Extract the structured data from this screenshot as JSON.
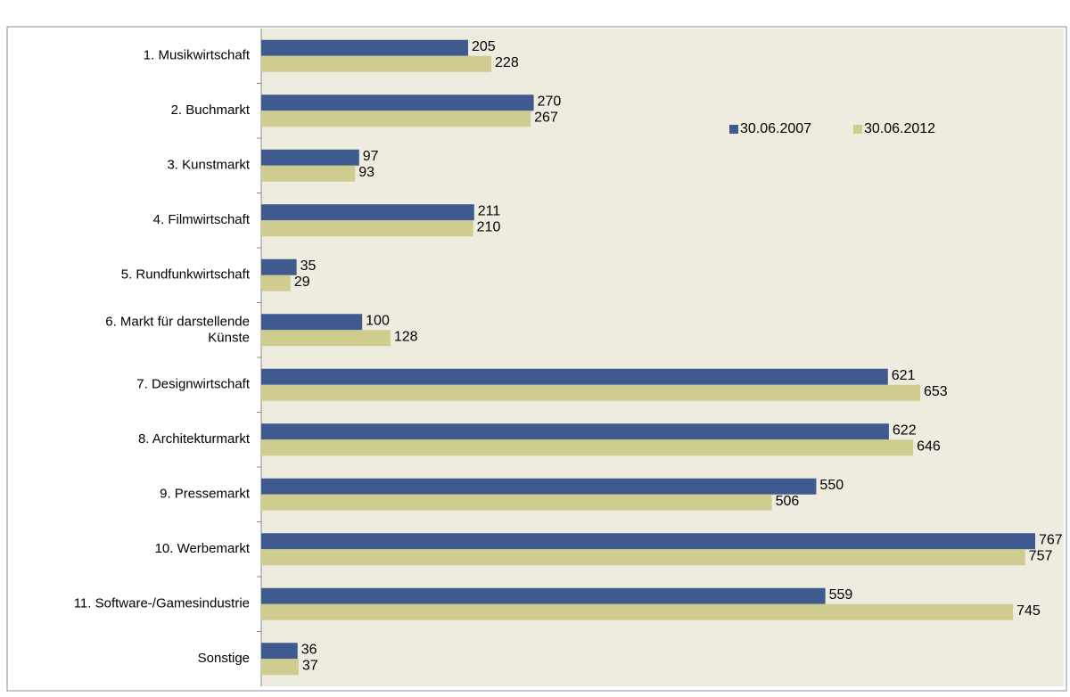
{
  "chart_data": {
    "type": "bar",
    "orientation": "horizontal",
    "categories": [
      "1. Musikwirtschaft",
      "2. Buchmarkt",
      "3. Kunstmarkt",
      "4. Filmwirtschaft",
      "5. Rundfunkwirtschaft",
      "6. Markt für darstellende\nKünste",
      "7. Designwirtschaft",
      "8. Architekturmarkt",
      "9. Pressemarkt",
      "10. Werbemarkt",
      "11. Software-/Gamesindustrie",
      "Sonstige"
    ],
    "series": [
      {
        "name": "30.06.2007",
        "color": "#3f5a8e",
        "values": [
          205,
          270,
          97,
          211,
          35,
          100,
          621,
          622,
          550,
          767,
          559,
          36
        ]
      },
      {
        "name": "30.06.2012",
        "color": "#cfcc8f",
        "values": [
          228,
          267,
          93,
          210,
          29,
          128,
          653,
          646,
          506,
          757,
          745,
          37
        ]
      }
    ],
    "legend": "top-right"
  }
}
